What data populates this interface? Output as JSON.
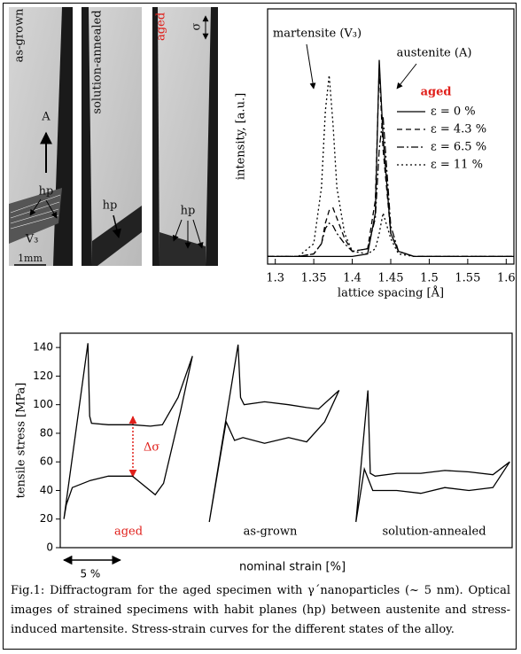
{
  "images": [
    {
      "title": "as-grown",
      "labels": [
        "A",
        "hp",
        "V₃",
        "1mm"
      ]
    },
    {
      "title": "solution-annealed",
      "labels": [
        "hp"
      ]
    },
    {
      "title": "aged",
      "labels": [
        "σ",
        "hp"
      ]
    }
  ],
  "chart_data": [
    {
      "type": "line",
      "xlabel": "lattice spacing [Å]",
      "ylabel": "intensity, [a.u.]",
      "annotations": [
        "martensite (V₃)",
        "austenite (A)"
      ],
      "legend": {
        "title": "aged",
        "title_color": "#e0201b"
      },
      "x": [
        1.29,
        1.33,
        1.35,
        1.36,
        1.365,
        1.37,
        1.375,
        1.38,
        1.39,
        1.4,
        1.42,
        1.43,
        1.435,
        1.44,
        1.45,
        1.46,
        1.48,
        1.52,
        1.61
      ],
      "xlim": [
        1.29,
        1.61
      ],
      "xticks": [
        1.3,
        1.35,
        1.4,
        1.45,
        1.5,
        1.55,
        1.6
      ],
      "ylim": [
        0,
        100
      ],
      "series": [
        {
          "name": "ε = 0 %",
          "color": "#000000",
          "dash": "solid",
          "values": [
            3,
            3,
            3,
            3,
            3,
            3,
            3,
            3,
            3,
            3,
            4,
            20,
            80,
            50,
            12,
            5,
            3,
            3,
            3
          ]
        },
        {
          "name": "ε = 4.3 %",
          "color": "#000000",
          "dash": "dashed",
          "values": [
            3,
            3,
            4,
            8,
            16,
            21,
            22,
            18,
            10,
            5,
            6,
            25,
            77,
            45,
            12,
            5,
            3,
            3,
            3
          ]
        },
        {
          "name": "ε = 6.5 %",
          "color": "#000000",
          "dash": "dashdot",
          "values": [
            3,
            3,
            4,
            8,
            14,
            16,
            15,
            12,
            8,
            5,
            6,
            18,
            45,
            58,
            15,
            5,
            3,
            3,
            3
          ]
        },
        {
          "name": "ε = 11 %",
          "color": "#000000",
          "dash": "dotted",
          "values": [
            3,
            3,
            8,
            30,
            60,
            74,
            55,
            30,
            12,
            5,
            4,
            6,
            12,
            20,
            10,
            4,
            3,
            3,
            3
          ]
        }
      ]
    },
    {
      "type": "line",
      "xlabel": "nominal strain [%]",
      "ylabel": "tensile stress [MPa]",
      "xlim": [
        0,
        37.6
      ],
      "ylim": [
        0,
        150
      ],
      "yticks": [
        0,
        20,
        40,
        60,
        80,
        100,
        120,
        140
      ],
      "scale_bar": {
        "value": 5,
        "label": "5 %"
      },
      "annotation": "Δσ",
      "annotation_color": "#e0201b",
      "series": [
        {
          "name": "aged",
          "color": "#000000",
          "label_color": "#e0201b",
          "x": [
            0.3,
            2.3,
            2.45,
            2.6,
            4,
            6,
            7.5,
            8.5,
            9.8,
            11.0,
            10,
            8.6,
            7.9,
            6,
            4,
            2.5,
            1,
            0.5,
            0.3
          ],
          "values": [
            20,
            143,
            92,
            87,
            86,
            86,
            85,
            86,
            105,
            134,
            95,
            45,
            37,
            50,
            50,
            47,
            42,
            30,
            20
          ]
        },
        {
          "name": "as-grown",
          "color": "#000000",
          "label_color": "#000000",
          "x": [
            12.4,
            14.8,
            15.0,
            15.3,
            17,
            19,
            20.5,
            21.5,
            23.2,
            22,
            20.5,
            19,
            17,
            15.2,
            14.5,
            13.8,
            12.4
          ],
          "values": [
            18,
            142,
            105,
            100,
            102,
            100,
            98,
            97,
            110,
            88,
            74,
            77,
            73,
            77,
            75,
            88,
            18
          ]
        },
        {
          "name": "solution-annealed",
          "color": "#000000",
          "label_color": "#000000",
          "x": [
            24.6,
            25.6,
            25.8,
            26.2,
            28,
            30,
            32,
            34,
            36,
            37.4,
            36,
            34,
            32,
            30,
            28,
            26,
            25.3,
            24.6
          ],
          "values": [
            18,
            110,
            52,
            50,
            52,
            52,
            54,
            53,
            51,
            60,
            42,
            40,
            42,
            38,
            40,
            40,
            55,
            18
          ]
        }
      ]
    }
  ],
  "caption": "Fig.1: Diffractogram for the aged specimen with γ´nanoparticles (~ 5 nm). Optical images of strained specimens with habit planes (hp) between austenite and stress-induced martensite. Stress-strain curves for the different states of the alloy."
}
